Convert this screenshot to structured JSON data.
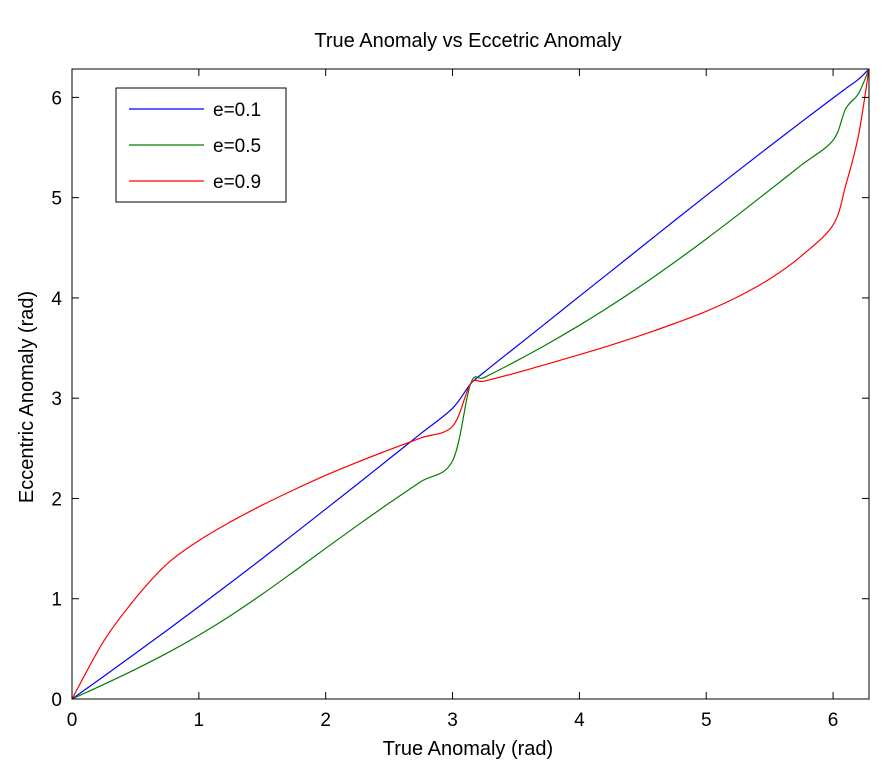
{
  "chart_data": {
    "type": "line",
    "title": "True Anomaly vs Eccetric Anomaly",
    "xlabel": "True Anomaly  (rad)",
    "ylabel": "Eccentric Anomaly (rad)",
    "xlim": [
      0,
      6.2832
    ],
    "ylim": [
      0,
      6.2832
    ],
    "xticks": [
      0,
      1,
      2,
      3,
      4,
      5,
      6
    ],
    "yticks": [
      0,
      1,
      2,
      3,
      4,
      5,
      6
    ],
    "grid": false,
    "legend_position": "top-left",
    "x": [
      0,
      0.25,
      0.5,
      0.75,
      1,
      1.25,
      1.5,
      1.75,
      2,
      2.25,
      2.5,
      2.75,
      3,
      3.1416,
      3.25,
      3.5,
      3.75,
      4,
      4.25,
      4.5,
      4.75,
      5,
      5.25,
      5.5,
      5.75,
      6,
      6.1,
      6.2,
      6.2832
    ],
    "series": [
      {
        "name": "e=0.1",
        "color": "#0000ff",
        "values": [
          0,
          0.226,
          0.455,
          0.686,
          0.921,
          1.159,
          1.401,
          1.646,
          1.894,
          2.143,
          2.395,
          2.647,
          2.899,
          3.142,
          3.26,
          3.512,
          3.763,
          4.016,
          4.267,
          4.519,
          4.771,
          5.021,
          5.268,
          5.513,
          5.755,
          5.994,
          6.088,
          6.18,
          6.2832
        ]
      },
      {
        "name": "e=0.5",
        "color": "#007f00",
        "values": [
          0,
          0.145,
          0.296,
          0.458,
          0.636,
          0.832,
          1.046,
          1.272,
          1.503,
          1.731,
          1.953,
          2.168,
          2.375,
          3.142,
          3.206,
          3.369,
          3.542,
          3.727,
          3.925,
          4.134,
          4.356,
          4.588,
          4.829,
          5.076,
          5.325,
          5.573,
          5.888,
          6.037,
          6.2832
        ]
      },
      {
        "name": "e=0.9",
        "color": "#ff0000",
        "values": [
          0,
          0.577,
          1.004,
          1.348,
          1.58,
          1.767,
          1.934,
          2.087,
          2.231,
          2.362,
          2.485,
          2.604,
          2.72,
          3.142,
          3.17,
          3.252,
          3.342,
          3.434,
          3.53,
          3.633,
          3.745,
          3.867,
          4.012,
          4.189,
          4.419,
          4.728,
          5.125,
          5.619,
          6.2832
        ]
      }
    ]
  }
}
